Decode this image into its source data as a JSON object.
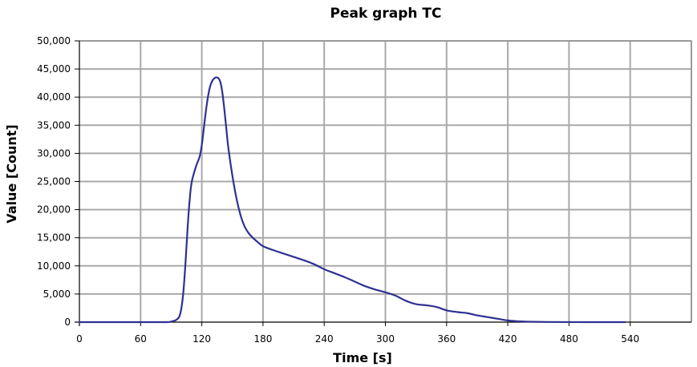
{
  "chart_data": {
    "type": "line",
    "title": "Peak graph TC",
    "xlabel": "Time [s]",
    "ylabel": "Value [Count]",
    "xlim": [
      0,
      600
    ],
    "ylim": [
      0,
      50000
    ],
    "x_ticks": [
      0,
      60,
      120,
      180,
      240,
      300,
      360,
      420,
      480,
      540
    ],
    "x_tick_labels": [
      "0",
      "60",
      "120",
      "180",
      "240",
      "300",
      "360",
      "420",
      "480",
      "540"
    ],
    "y_ticks": [
      0,
      5000,
      10000,
      15000,
      20000,
      25000,
      30000,
      35000,
      40000,
      45000,
      50000
    ],
    "y_tick_labels": [
      "0",
      "5,000",
      "10,000",
      "15,000",
      "20,000",
      "25,000",
      "30,000",
      "35,000",
      "40,000",
      "45,000",
      "50,000"
    ],
    "grid": true,
    "series": [
      {
        "color": "#2e3192",
        "x": [
          0,
          60,
          85,
          90,
          95,
          98,
          100,
          102,
          104,
          106,
          108,
          110,
          114,
          118,
          120,
          122,
          124,
          126,
          128,
          130,
          132,
          134,
          136,
          138,
          140,
          142,
          144,
          146,
          150,
          154,
          158,
          162,
          166,
          170,
          175,
          180,
          190,
          200,
          210,
          220,
          230,
          240,
          250,
          260,
          270,
          280,
          290,
          300,
          310,
          320,
          330,
          340,
          350,
          360,
          370,
          380,
          390,
          400,
          410,
          420,
          430,
          440,
          460,
          480,
          500,
          520,
          535
        ],
        "y": [
          0,
          0,
          0,
          100,
          400,
          1000,
          2500,
          5500,
          10500,
          16500,
          21500,
          24800,
          27500,
          29500,
          31500,
          34500,
          37500,
          40000,
          41800,
          42800,
          43300,
          43500,
          43400,
          42800,
          41000,
          38000,
          34500,
          31000,
          26000,
          22000,
          19000,
          17000,
          15800,
          15000,
          14200,
          13500,
          12800,
          12200,
          11600,
          11000,
          10300,
          9400,
          8700,
          8000,
          7200,
          6400,
          5800,
          5300,
          4700,
          3800,
          3200,
          3000,
          2700,
          2100,
          1800,
          1600,
          1200,
          900,
          600,
          300,
          150,
          80,
          30,
          10,
          0,
          0,
          0
        ]
      }
    ]
  }
}
